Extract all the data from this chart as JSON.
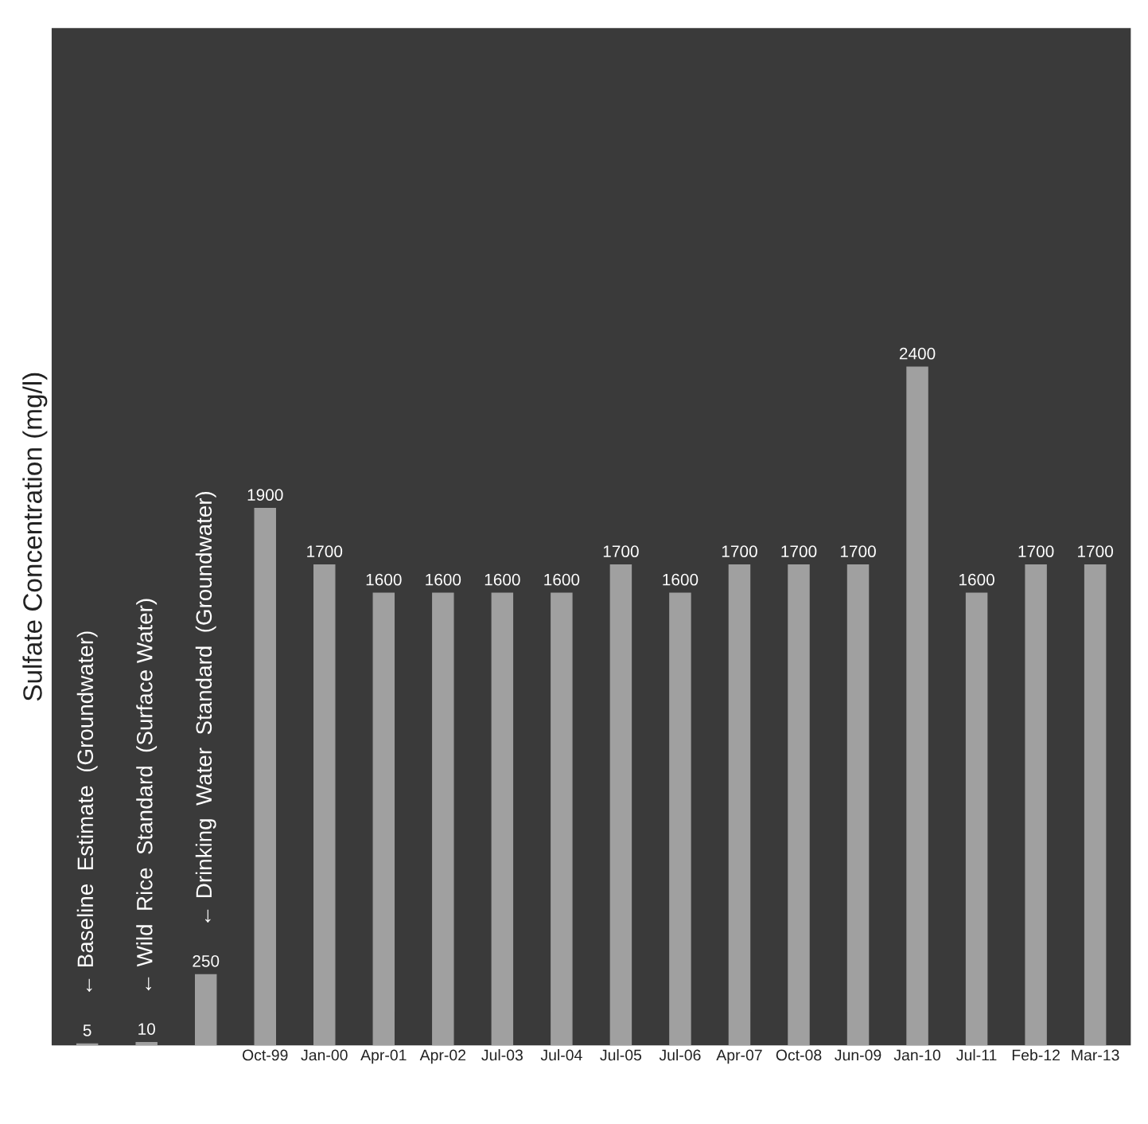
{
  "chart_data": {
    "type": "bar",
    "ylabel": "Sulfate Concentration (mg/l)",
    "categories": [
      null,
      null,
      null,
      "Oct-99",
      "Jan-00",
      "Apr-01",
      "Apr-02",
      "Jul-03",
      "Jul-04",
      "Jul-05",
      "Jul-06",
      "Apr-07",
      "Oct-08",
      "Jun-09",
      "Jan-10",
      "Jul-11",
      "Feb-12",
      "Mar-13"
    ],
    "values": [
      5,
      10,
      250,
      1900,
      1700,
      1600,
      1600,
      1600,
      1600,
      1700,
      1600,
      1700,
      1700,
      1700,
      2400,
      1600,
      1700,
      1700
    ],
    "color": "#a0a0a0",
    "data_labels": true,
    "grid": false,
    "legend": false,
    "annotations": [
      "← Baseline  Estimate  (Groundwater)",
      "← Wild  Rice  Standard  (Surface Water)",
      "← Drinking  Water  Standard  (Groundwater)"
    ]
  }
}
